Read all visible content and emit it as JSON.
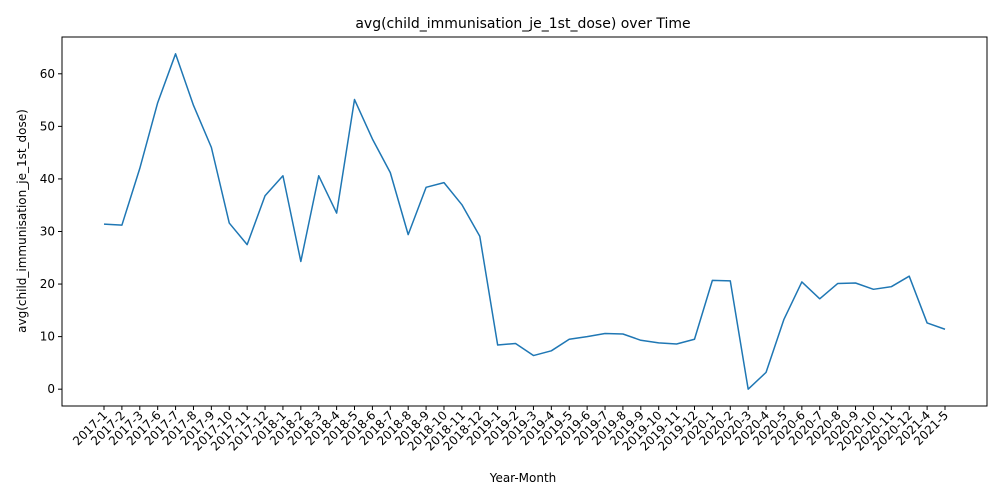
{
  "chart_data": {
    "type": "line",
    "title": "avg(child_immunisation_je_1st_dose) over Time",
    "xlabel": "Year-Month",
    "ylabel": "avg(child_immunisation_je_1st_dose)",
    "ylim": [
      -3.2,
      67
    ],
    "yticks": [
      0,
      10,
      20,
      30,
      40,
      50,
      60
    ],
    "grid": false,
    "legend": "none",
    "color": "#1f77b4",
    "categories": [
      "2017-1",
      "2017-2",
      "2017-3",
      "2017-6",
      "2017-7",
      "2017-8",
      "2017-9",
      "2017-10",
      "2017-11",
      "2017-12",
      "2018-1",
      "2018-2",
      "2018-3",
      "2018-4",
      "2018-5",
      "2018-6",
      "2018-7",
      "2018-8",
      "2018-9",
      "2018-10",
      "2018-11",
      "2018-12",
      "2019-1",
      "2019-2",
      "2019-3",
      "2019-4",
      "2019-5",
      "2019-6",
      "2019-7",
      "2019-8",
      "2019-9",
      "2019-10",
      "2019-11",
      "2019-12",
      "2020-1",
      "2020-2",
      "2020-3",
      "2020-4",
      "2020-5",
      "2020-6",
      "2020-7",
      "2020-8",
      "2020-9",
      "2020-10",
      "2020-11",
      "2020-12",
      "2021-4",
      "2021-5"
    ],
    "values": [
      31.4,
      31.2,
      42.0,
      54.5,
      63.8,
      54.0,
      46.0,
      31.6,
      27.5,
      36.8,
      40.6,
      24.3,
      40.6,
      33.5,
      55.1,
      47.6,
      41.2,
      29.4,
      38.4,
      39.3,
      35.1,
      29.1,
      8.4,
      8.7,
      6.4,
      7.3,
      9.5,
      10.0,
      10.6,
      10.5,
      9.3,
      8.8,
      8.6,
      9.5,
      20.7,
      20.6,
      0.0,
      3.2,
      13.3,
      20.4,
      17.2,
      20.1,
      20.2,
      19.0,
      19.5,
      21.5,
      12.6,
      11.4
    ]
  }
}
